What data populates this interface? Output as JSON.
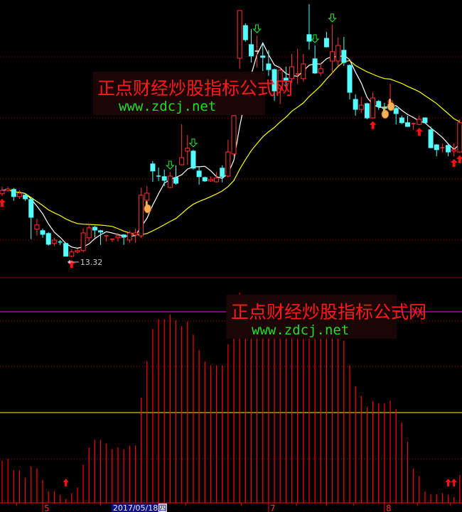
{
  "chart_data": [
    {
      "type": "candlestick",
      "panel": "price",
      "ohlc": [
        [
          15.55,
          15.8,
          15.47,
          15.67
        ],
        [
          15.67,
          15.8,
          15.62,
          15.72
        ],
        [
          15.7,
          15.75,
          15.3,
          15.45
        ],
        [
          15.45,
          15.67,
          15.37,
          15.57
        ],
        [
          15.5,
          15.57,
          15.3,
          15.37
        ],
        [
          15.35,
          15.4,
          13.95,
          14.72
        ],
        [
          14.3,
          14.67,
          14.07,
          14.45
        ],
        [
          14.25,
          14.32,
          14.0,
          14.12
        ],
        [
          14.15,
          14.2,
          13.72,
          13.77
        ],
        [
          13.8,
          14.0,
          13.7,
          13.92
        ],
        [
          13.85,
          13.92,
          13.75,
          13.84
        ],
        [
          13.8,
          13.82,
          13.34,
          13.35
        ],
        [
          13.35,
          13.6,
          13.32,
          13.5
        ],
        [
          13.5,
          13.62,
          13.45,
          13.55
        ],
        [
          13.55,
          14.32,
          13.5,
          14.17
        ],
        [
          14.0,
          14.5,
          13.87,
          14.35
        ],
        [
          14.37,
          14.42,
          14.0,
          14.27
        ],
        [
          14.25,
          14.28,
          13.75,
          14.2
        ],
        [
          14.05,
          14.1,
          13.87,
          14.07
        ],
        [
          13.92,
          13.97,
          13.85,
          13.95
        ],
        [
          14.0,
          14.17,
          13.87,
          14.07
        ],
        [
          14.1,
          14.12,
          13.75,
          14.02
        ],
        [
          13.92,
          14.25,
          13.82,
          14.17
        ],
        [
          14.1,
          14.32,
          13.82,
          14.17
        ],
        [
          14.07,
          15.75,
          14.0,
          15.5
        ],
        [
          15.32,
          15.82,
          14.95,
          15.57
        ],
        [
          16.6,
          16.7,
          15.97,
          16.35
        ],
        [
          16.17,
          16.47,
          16.0,
          16.16
        ],
        [
          16.15,
          16.4,
          15.82,
          16.02
        ],
        [
          15.77,
          16.32,
          15.75,
          16.17
        ],
        [
          16.12,
          16.55,
          15.87,
          15.92
        ],
        [
          16.57,
          18.0,
          16.55,
          16.82
        ],
        [
          17.05,
          17.62,
          16.57,
          17.15
        ],
        [
          17.05,
          17.1,
          16.4,
          16.45
        ],
        [
          16.35,
          16.5,
          15.87,
          16.15
        ],
        [
          16.12,
          16.15,
          15.97,
          16.0
        ],
        [
          16.0,
          16.15,
          15.97,
          16.05
        ],
        [
          15.97,
          16.32,
          15.95,
          16.1
        ],
        [
          16.45,
          16.55,
          15.95,
          16.15
        ],
        [
          16.17,
          17.45,
          16.12,
          17.02
        ],
        [
          16.95,
          18.37,
          16.87,
          18.3
        ],
        [
          20.32,
          22.0,
          19.95,
          22.0
        ],
        [
          21.47,
          21.55,
          20.9,
          20.97
        ],
        [
          20.8,
          21.35,
          20.17,
          20.4
        ],
        [
          20.57,
          21.12,
          20.0,
          20.57
        ],
        [
          20.4,
          20.82,
          19.87,
          20.35
        ],
        [
          20.12,
          20.6,
          19.7,
          19.92
        ],
        [
          19.92,
          19.95,
          18.82,
          19.17
        ],
        [
          19.25,
          20.02,
          18.7,
          19.9
        ],
        [
          19.62,
          20.02,
          19.27,
          19.55
        ],
        [
          19.6,
          20.47,
          19.45,
          20.02
        ],
        [
          19.75,
          20.65,
          19.42,
          19.77
        ],
        [
          19.6,
          20.47,
          19.5,
          20.12
        ],
        [
          21.15,
          22.22,
          20.62,
          20.92
        ],
        [
          20.3,
          20.77,
          19.77,
          19.8
        ],
        [
          19.8,
          20.17,
          19.7,
          19.95
        ],
        [
          21.02,
          21.25,
          20.7,
          20.72
        ],
        [
          20.22,
          21.5,
          19.8,
          20.55
        ],
        [
          20.22,
          21.05,
          20.05,
          20.77
        ],
        [
          20.6,
          21.07,
          20.05,
          20.17
        ],
        [
          20.07,
          20.1,
          18.87,
          19.12
        ],
        [
          18.87,
          19.05,
          18.3,
          18.52
        ],
        [
          18.52,
          18.95,
          18.4,
          18.67
        ],
        [
          18.72,
          18.75,
          18.17,
          18.22
        ],
        [
          18.22,
          19.12,
          18.2,
          18.92
        ],
        [
          18.8,
          18.85,
          18.5,
          18.62
        ],
        [
          18.6,
          18.75,
          18.45,
          18.55
        ],
        [
          18.75,
          19.42,
          18.62,
          18.82
        ],
        [
          18.55,
          18.62,
          17.99,
          18.37
        ],
        [
          18.22,
          18.3,
          18.0,
          18.05
        ],
        [
          18.05,
          18.3,
          17.9,
          17.92
        ],
        [
          18.02,
          18.05,
          17.8,
          18.02
        ],
        [
          17.99,
          18.3,
          17.97,
          18.17
        ],
        [
          18.22,
          18.24,
          18.03,
          18.05
        ],
        [
          17.8,
          17.92,
          17.15,
          17.17
        ],
        [
          17.27,
          17.3,
          16.87,
          17.1
        ],
        [
          17.15,
          17.32,
          17.0,
          17.17
        ],
        [
          17.25,
          17.28,
          16.87,
          17.02
        ],
        [
          17.05,
          17.32,
          16.87,
          17.1
        ],
        [
          17.02,
          18.17,
          17.0,
          18.05
        ]
      ],
      "moving_averages": [
        {
          "period": 5,
          "color": "#ffffff"
        },
        {
          "period": 20,
          "color": "#ffff00"
        }
      ],
      "grid_levels": [
        20.37,
        18.22,
        16.07,
        13.92
      ],
      "low_label": {
        "index": 12,
        "text": "13.32"
      },
      "buy_signals": [
        0,
        12,
        64,
        72,
        78,
        79
      ],
      "sell_signals": [
        29,
        33,
        44,
        54,
        57
      ],
      "hand_markers": [
        25,
        66,
        67
      ],
      "up_color": "#ff3232",
      "down_color": "#54ffff"
    },
    {
      "type": "bar",
      "panel": "indicator",
      "values": [
        22,
        23,
        17,
        17,
        13,
        19,
        18,
        12,
        6,
        6,
        4,
        2,
        5,
        8,
        20,
        29,
        33,
        33,
        31,
        28,
        29,
        28,
        30,
        30,
        55,
        74,
        91,
        96,
        96,
        98.5,
        95.5,
        92.5,
        95,
        88,
        80,
        74,
        72,
        72,
        72,
        83,
        95,
        110,
        92,
        96,
        99,
        101,
        97,
        94,
        98,
        100,
        96,
        93,
        99,
        102,
        97,
        95,
        100,
        98,
        96,
        85,
        72,
        61,
        56,
        50,
        53,
        52,
        52,
        53.5,
        49,
        42,
        32,
        18,
        14,
        6,
        4.5,
        4.5,
        5,
        4,
        3,
        14.5
      ],
      "bar_color": "#ff0000",
      "reference_levels": [
        {
          "value": 100,
          "color": "#ff00ff",
          "style": "solid"
        },
        {
          "value": 95.2,
          "color": "#c00000",
          "style": "dotted"
        },
        {
          "value": 71.4,
          "color": "#c00000",
          "style": "dotted"
        },
        {
          "value": 47.2,
          "color": "#ffff00",
          "style": "solid"
        },
        {
          "value": 23,
          "color": "#c00000",
          "style": "dotted"
        }
      ],
      "signals": [
        11,
        77,
        78
      ]
    }
  ],
  "x_axis": {
    "ticks": [
      2.5,
      17,
      31.7,
      41.3,
      50.8,
      56,
      60.7,
      71.7,
      77.4
    ],
    "labels": [
      {
        "index": 7,
        "text": "5"
      },
      {
        "index": 46,
        "text": "7"
      },
      {
        "index": 66,
        "text": "8"
      }
    ],
    "cursor_date": {
      "index": 19,
      "text": "2017/05/18/",
      "weekday": "四"
    }
  },
  "watermark": {
    "title": "正点财经炒股指标公式网",
    "url": "www.zdcj.net"
  }
}
